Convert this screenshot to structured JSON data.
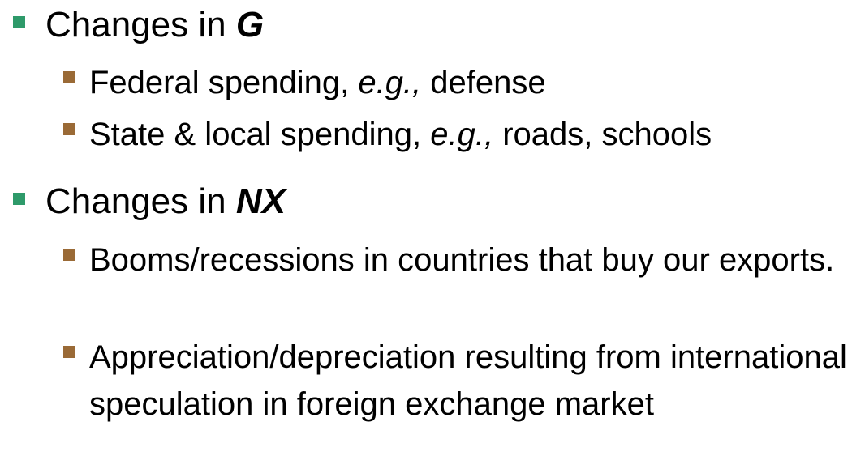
{
  "colors": {
    "level1_bullet": "#2e9a6a",
    "level2_bullet": "#9a6a36",
    "text": "#000000"
  },
  "items": [
    {
      "prefix": "Changes in ",
      "emphasis": "G",
      "subitems": [
        {
          "before": "Federal spending, ",
          "italic": "e.g.,",
          "after": " defense"
        },
        {
          "before": "State & local spending, ",
          "italic": "e.g.,",
          "after": " roads, schools"
        }
      ]
    },
    {
      "prefix": "Changes in ",
      "emphasis": "NX",
      "subitems": [
        {
          "text": "Booms/recessions in countries that buy our exports."
        },
        {
          "text": "Appreciation/depreciation resulting from international speculation in foreign exchange market"
        }
      ]
    }
  ]
}
